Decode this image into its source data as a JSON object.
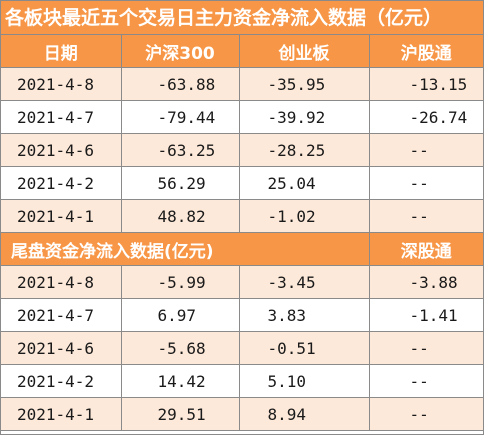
{
  "title": "各板块最近五个交易日主力资金净流入数据（亿元）",
  "section1": {
    "headers": [
      "日期",
      "沪深300",
      "创业板",
      "沪股通"
    ],
    "rows": [
      [
        "2021-4-8",
        "-63.88",
        "-35.95",
        "-13.15"
      ],
      [
        "2021-4-7",
        "-79.44",
        "-39.92",
        "-26.74"
      ],
      [
        "2021-4-6",
        "-63.25",
        "-28.25",
        "--"
      ],
      [
        "2021-4-2",
        "56.29",
        "25.04",
        "--"
      ],
      [
        "2021-4-1",
        "48.82",
        "-1.02",
        "--"
      ]
    ]
  },
  "section2": {
    "header_left": "尾盘资金净流入数据(亿元)",
    "header_right": "深股通",
    "rows": [
      [
        "2021-4-8",
        "-5.99",
        "-3.45",
        "-3.88"
      ],
      [
        "2021-4-7",
        "6.97",
        "3.83",
        "-1.41"
      ],
      [
        "2021-4-6",
        "-5.68",
        "-0.51",
        "--"
      ],
      [
        "2021-4-2",
        "14.42",
        "5.10",
        "--"
      ],
      [
        "2021-4-1",
        "29.51",
        "8.94",
        "--"
      ]
    ]
  },
  "colors": {
    "header_bg": "#f79646",
    "header_text": "#ffffff",
    "odd_row_bg": "#fde9d9",
    "even_row_bg": "#ffffff",
    "border": "#8a8a8a"
  }
}
